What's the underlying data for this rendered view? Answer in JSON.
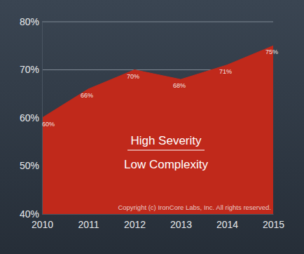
{
  "chart_data": {
    "type": "area",
    "x": [
      2010,
      2011,
      2012,
      2013,
      2014,
      2015
    ],
    "values": [
      60,
      66,
      70,
      68,
      71,
      75
    ],
    "value_labels": [
      "60%",
      "66%",
      "70%",
      "68%",
      "71%",
      "75%"
    ],
    "color": "#c0291b",
    "xlim": [
      2010,
      2015
    ],
    "xticks": [
      2010,
      2011,
      2012,
      2013,
      2014,
      2015
    ],
    "ylim": [
      40,
      80
    ],
    "yticks": [
      {
        "value": 40,
        "label": "40%"
      },
      {
        "value": 50,
        "label": "50%"
      },
      {
        "value": 60,
        "label": "60%"
      },
      {
        "value": 70,
        "label": "70%"
      },
      {
        "value": 80,
        "label": "80%"
      }
    ],
    "grid": true,
    "data_labels": true,
    "annotations": [
      "High Severity",
      "Low Complexity",
      "Copyright (c) IronCore Labs, Inc. All rights reserved."
    ]
  }
}
